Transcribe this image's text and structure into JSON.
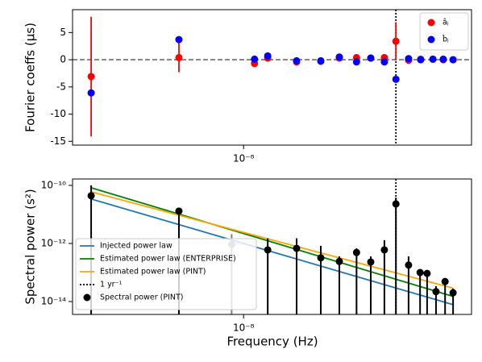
{
  "chart_data": [
    {
      "type": "scatter",
      "ylabel": "Fourier coeffs (μs)",
      "xlog": true,
      "xlim": [
        2.59e-09,
        6.05e-08
      ],
      "xticks": [
        {
          "value": 1e-08,
          "label": "10⁻⁸"
        }
      ],
      "ylim": [
        -15.7,
        9.2
      ],
      "yticks": [
        5,
        0,
        -5,
        -10,
        -15
      ],
      "hline": 0,
      "vline": 3.33e-08,
      "legend": "upper right",
      "x": [
        3e-09,
        6e-09,
        1.09e-08,
        1.21e-08,
        1.52e-08,
        1.84e-08,
        2.13e-08,
        2.44e-08,
        2.73e-08,
        3.04e-08,
        3.33e-08,
        3.68e-08,
        4.05e-08,
        4.46e-08,
        4.84e-08,
        5.23e-08
      ],
      "series": [
        {
          "name": "âⱼ",
          "color": "red",
          "values": [
            -3.1,
            0.4,
            -0.7,
            0.3,
            -0.4,
            -0.3,
            0.3,
            0.4,
            0.3,
            0.4,
            3.4,
            -0.1,
            0.1,
            0.1,
            0,
            0
          ],
          "errors": [
            11,
            2.7,
            0.6,
            0.3,
            0.3,
            0.3,
            0.2,
            0.2,
            0.2,
            0.2,
            3.5,
            0.2,
            0.2,
            0.2,
            0.2,
            0.2
          ]
        },
        {
          "name": "b̂ⱼ",
          "color": "blue",
          "values": [
            -6.1,
            3.7,
            0.1,
            0.7,
            -0.2,
            -0.2,
            0.5,
            -0.4,
            0.3,
            -0.4,
            -3.6,
            0.2,
            0,
            0.1,
            0.1,
            0
          ]
        }
      ]
    },
    {
      "type": "scatter",
      "xlabel": "Frequency (Hz)",
      "ylabel": "Spectral power (s²)",
      "xlog": true,
      "ylog": true,
      "xlim": [
        2.59e-09,
        6.05e-08
      ],
      "xticks": [
        {
          "value": 1e-08,
          "label": "10⁻⁸"
        }
      ],
      "ylim": [
        3.6e-15,
        1.66e-10
      ],
      "yticks": [
        {
          "value": 1e-10,
          "label": "10⁻¹⁰"
        },
        {
          "value": 1e-12,
          "label": "10⁻¹²"
        },
        {
          "value": 1e-14,
          "label": "10⁻¹⁴"
        }
      ],
      "legend": "lower left",
      "series": [
        {
          "name": "Injected power law",
          "color": "#1f77b4",
          "x": [
            3e-09,
            5.23e-08
          ],
          "values": [
            3.4e-11,
            7.8e-15
          ]
        },
        {
          "name": "Estimated power law (ENTERPRISE)",
          "color": "green",
          "x": [
            3e-09,
            5.23e-08
          ],
          "values": [
            8.3e-11,
            1.5e-14
          ]
        },
        {
          "name": "Estimated power law (PINT)",
          "color": "orange",
          "x": [
            3e-09,
            5.23e-08
          ],
          "values": [
            6e-11,
            2.9e-14
          ]
        },
        {
          "name": "Spectral power (PINT)",
          "color": "black",
          "x": [
            3e-09,
            6e-09,
            9.1e-09,
            1.21e-08,
            1.52e-08,
            1.84e-08,
            2.13e-08,
            2.44e-08,
            2.73e-08,
            3.04e-08,
            3.33e-08,
            3.68e-08,
            4.03e-08,
            4.26e-08,
            4.57e-08,
            4.91e-08,
            5.23e-08
          ],
          "values": [
            4.4e-11,
            1.3e-11,
            9.3e-13,
            6e-13,
            6.8e-13,
            3.2e-13,
            2.4e-13,
            4.9e-13,
            2.3e-13,
            6e-13,
            2.3e-11,
            1.8e-13,
            1e-13,
            9.3e-14,
            2.2e-14,
            4.9e-14,
            2e-14
          ],
          "upper": [
            1e-10,
            1.3e-11,
            2.1e-12,
            1.5e-12,
            1.5e-12,
            8.3e-13,
            3.6e-13,
            6.8e-13,
            3.6e-13,
            1.3e-12,
            3.8e-11,
            3.6e-13,
            1.2e-13,
            1.2e-13,
            3.4e-14,
            6.3e-14,
            2.8e-14
          ],
          "point_colors": [
            "black",
            "black",
            "gray",
            "black",
            "black",
            "black",
            "black",
            "black",
            "black",
            "black",
            "black",
            "black",
            "black",
            "black",
            "black",
            "black",
            "black"
          ]
        }
      ],
      "vline": {
        "name": "1 yr⁻¹",
        "x": 3.33e-08,
        "color": "black"
      }
    }
  ]
}
